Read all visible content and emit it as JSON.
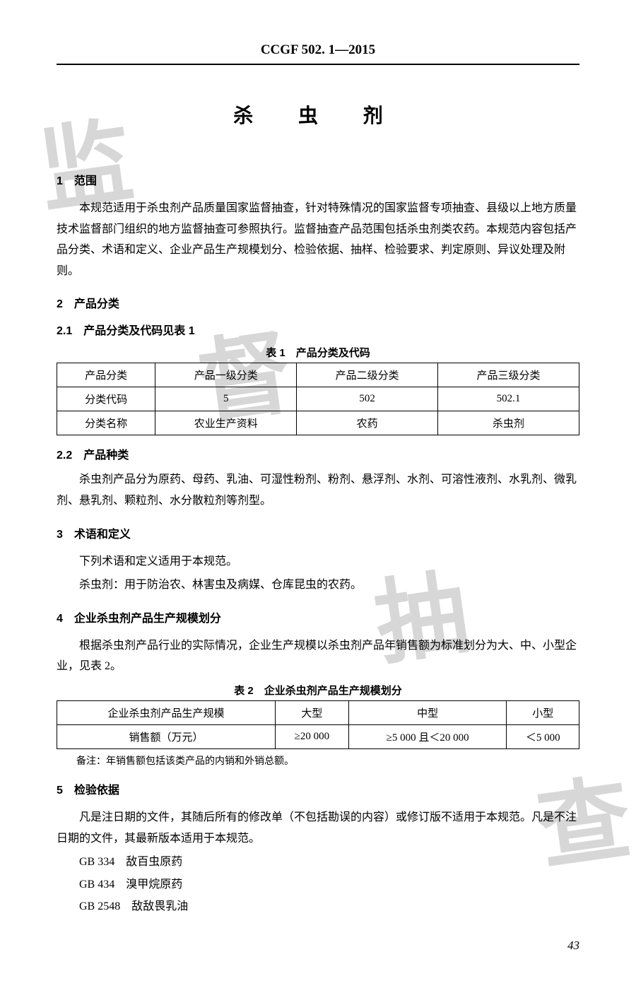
{
  "header_code": "CCGF 502. 1—2015",
  "main_title": "杀 虫 剂",
  "watermarks": {
    "w1": "监",
    "w2": "督",
    "w3": "抽",
    "w4": "查"
  },
  "s1": {
    "head": "1　范围",
    "p1": "本规范适用于杀虫剂产品质量国家监督抽查，针对特殊情况的国家监督专项抽查、县级以上地方质量技术监督部门组织的地方监督抽查可参照执行。监督抽查产品范围包括杀虫剂类农药。本规范内容包括产品分类、术语和定义、企业产品生产规模划分、检验依据、抽样、检验要求、判定原则、异议处理及附则。"
  },
  "s2": {
    "head": "2　产品分类",
    "sub1": "2.1　产品分类及代码见表 1",
    "t1_caption": "表 1　产品分类及代码",
    "t1": {
      "columns": [
        "产品分类",
        "产品一级分类",
        "产品二级分类",
        "产品三级分类"
      ],
      "rows": [
        [
          "分类代码",
          "5",
          "502",
          "502.1"
        ],
        [
          "分类名称",
          "农业生产资料",
          "农药",
          "杀虫剂"
        ]
      ]
    },
    "sub2": "2.2　产品种类",
    "p2": "杀虫剂产品分为原药、母药、乳油、可湿性粉剂、粉剂、悬浮剂、水剂、可溶性液剂、水乳剂、微乳剂、悬乳剂、颗粒剂、水分散粒剂等剂型。"
  },
  "s3": {
    "head": "3　术语和定义",
    "p1": "下列术语和定义适用于本规范。",
    "p2": "杀虫剂：用于防治农、林害虫及病媒、仓库昆虫的农药。"
  },
  "s4": {
    "head": "4　企业杀虫剂产品生产规模划分",
    "p1": "根据杀虫剂产品行业的实际情况，企业生产规模以杀虫剂产品年销售额为标准划分为大、中、小型企业，见表 2。",
    "t2_caption": "表 2　企业杀虫剂产品生产规模划分",
    "t2": {
      "columns": [
        "企业杀虫剂产品生产规模",
        "大型",
        "中型",
        "小型"
      ],
      "rows": [
        [
          "销售额（万元）",
          "≥20 000",
          "≥5 000 且＜20 000",
          "＜5 000"
        ]
      ]
    },
    "note": "备注：年销售额包括该类产品的内销和外销总额。"
  },
  "s5": {
    "head": "5　检验依据",
    "p1": "凡是注日期的文件，其随后所有的修改单（不包括勘误的内容）或修订版不适用于本规范。凡是不注日期的文件，其最新版本适用于本规范。",
    "gb": [
      "GB 334　敌百虫原药",
      "GB 434　溴甲烷原药",
      "GB 2548　敌敌畏乳油"
    ]
  },
  "page_num": "43",
  "colors": {
    "text": "#000000",
    "watermark": "#b8b8b8",
    "background": "#ffffff",
    "border": "#000000"
  }
}
